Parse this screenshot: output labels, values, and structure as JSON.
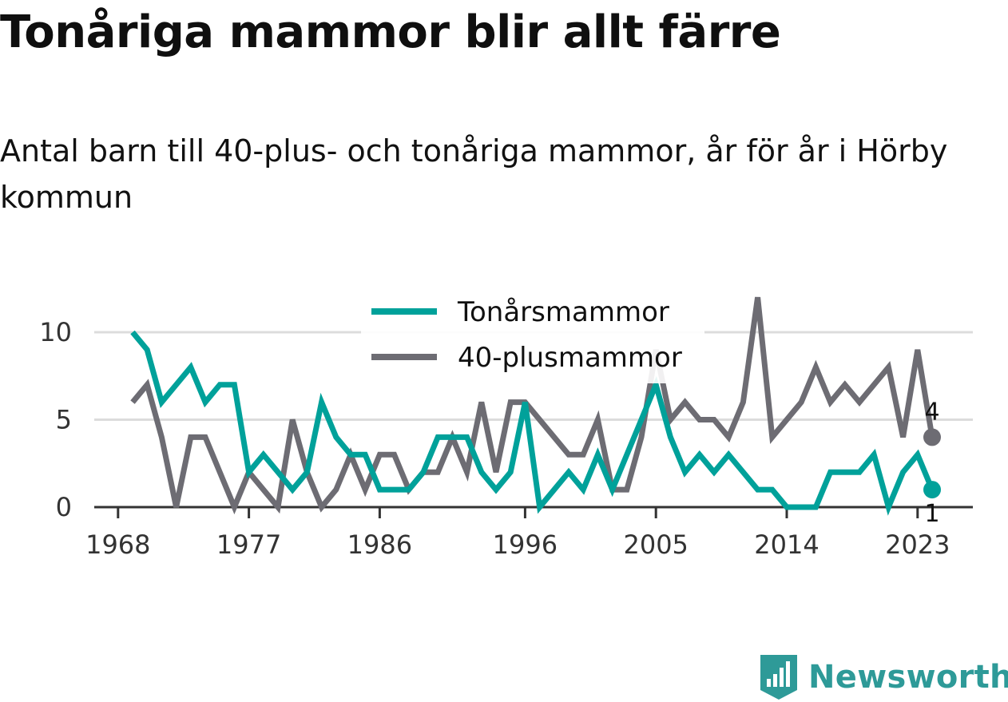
{
  "header": {
    "title": "Tonåriga mammor blir allt färre",
    "subtitle": "Antal barn till 40-plus- och tonåriga mammor, år för år i Hörby kommun"
  },
  "brand": {
    "name": "Newsworthy",
    "icon": "bar-chart-logo-icon",
    "color": "#2e9a98"
  },
  "chart_data": {
    "type": "line",
    "x": [
      1969,
      1970,
      1971,
      1972,
      1973,
      1974,
      1975,
      1976,
      1977,
      1978,
      1979,
      1980,
      1981,
      1982,
      1983,
      1984,
      1985,
      1986,
      1987,
      1988,
      1989,
      1990,
      1991,
      1992,
      1993,
      1994,
      1995,
      1996,
      1997,
      1998,
      1999,
      2000,
      2001,
      2002,
      2003,
      2004,
      2005,
      2006,
      2007,
      2008,
      2009,
      2010,
      2011,
      2012,
      2013,
      2014,
      2015,
      2016,
      2017,
      2018,
      2019,
      2020,
      2021,
      2022,
      2023,
      2024
    ],
    "series": [
      {
        "name": "Tonårsmammor",
        "color": "#00a19a",
        "values": [
          10,
          9,
          6,
          7,
          8,
          6,
          7,
          7,
          2,
          3,
          2,
          1,
          2,
          6,
          4,
          3,
          3,
          1,
          1,
          1,
          2,
          4,
          4,
          4,
          2,
          1,
          2,
          6,
          0,
          1,
          2,
          1,
          3,
          1,
          3,
          5,
          7,
          4,
          2,
          3,
          2,
          3,
          2,
          1,
          1,
          0,
          0,
          0,
          2,
          2,
          2,
          3,
          0,
          2,
          3,
          1
        ]
      },
      {
        "name": "40-plusmammor",
        "color": "#6d6c73",
        "values": [
          6,
          7,
          4,
          0,
          4,
          4,
          2,
          0,
          2,
          1,
          0,
          5,
          2,
          0,
          1,
          3,
          1,
          3,
          3,
          1,
          2,
          2,
          4,
          2,
          6,
          2,
          6,
          6,
          5,
          4,
          3,
          3,
          5,
          1,
          1,
          4,
          9,
          5,
          6,
          5,
          5,
          4,
          6,
          12,
          4,
          5,
          6,
          8,
          6,
          7,
          6,
          7,
          8,
          4,
          9,
          4
        ]
      }
    ],
    "x_ticks": [
      "1968",
      "1977",
      "1986",
      "1996",
      "2005",
      "2014",
      "2023"
    ],
    "y_ticks": [
      "0",
      "5",
      "10"
    ],
    "ylim": [
      0,
      12
    ],
    "end_labels": {
      "Tonårsmammor": "1",
      "40-plusmammor": "4"
    },
    "legend_position": "top-center",
    "grid": "horizontal"
  }
}
